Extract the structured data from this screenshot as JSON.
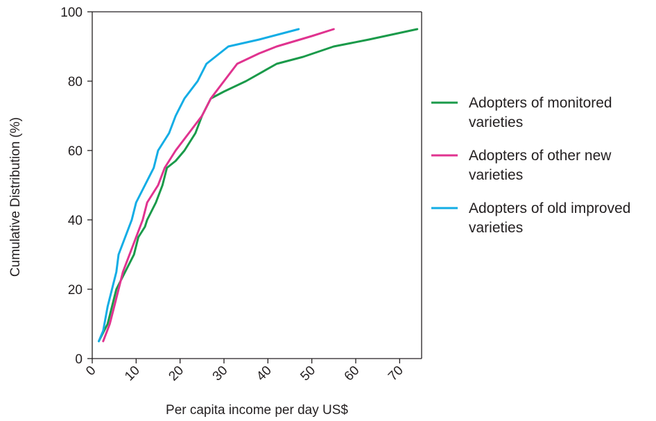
{
  "chart_data": {
    "type": "line",
    "title": "",
    "xlabel": "Per capita income per day US$",
    "ylabel": "Cumulative Distribution (%)",
    "xlim": [
      0,
      75
    ],
    "ylim": [
      0,
      100
    ],
    "x_ticks": [
      0,
      10,
      20,
      30,
      40,
      50,
      60,
      70
    ],
    "x_tick_labels": [
      "0",
      "10",
      "20",
      "30",
      "40",
      "50",
      "60",
      "70"
    ],
    "y_ticks": [
      0,
      20,
      40,
      60,
      80,
      100
    ],
    "y_tick_labels": [
      "0",
      "20",
      "40",
      "60",
      "80",
      "100"
    ],
    "grid": false,
    "legend_position": "right",
    "series": [
      {
        "name": "Adopters of monitored varieties",
        "legend_lines": [
          "Adopters of monitored",
          "varieties"
        ],
        "color": "#1a9a4a",
        "points": [
          [
            1.5,
            5
          ],
          [
            3.5,
            10
          ],
          [
            5.5,
            20
          ],
          [
            7.5,
            25
          ],
          [
            9.5,
            30
          ],
          [
            10.5,
            35
          ],
          [
            12,
            38
          ],
          [
            12.5,
            40
          ],
          [
            14.5,
            45
          ],
          [
            16,
            50
          ],
          [
            17,
            55
          ],
          [
            19,
            57
          ],
          [
            21,
            60
          ],
          [
            23.5,
            65
          ],
          [
            25,
            70
          ],
          [
            27,
            75
          ],
          [
            30,
            77
          ],
          [
            35,
            80
          ],
          [
            42,
            85
          ],
          [
            48,
            87
          ],
          [
            55,
            90
          ],
          [
            63,
            92
          ],
          [
            74,
            95
          ]
        ]
      },
      {
        "name": "Adopters of other new varieties",
        "legend_lines": [
          "Adopters of other new",
          "varieties"
        ],
        "color": "#e0338f",
        "points": [
          [
            2.5,
            5
          ],
          [
            4,
            10
          ],
          [
            5,
            15
          ],
          [
            6,
            20
          ],
          [
            7,
            25
          ],
          [
            8.5,
            30
          ],
          [
            10,
            35
          ],
          [
            11.5,
            40
          ],
          [
            12.5,
            45
          ],
          [
            15,
            50
          ],
          [
            16.5,
            55
          ],
          [
            19,
            60
          ],
          [
            22,
            65
          ],
          [
            25,
            70
          ],
          [
            27,
            75
          ],
          [
            30,
            80
          ],
          [
            33,
            85
          ],
          [
            38,
            88
          ],
          [
            42,
            90
          ],
          [
            50,
            93
          ],
          [
            55,
            95
          ]
        ]
      },
      {
        "name": "Adopters of old improved varieties",
        "legend_lines": [
          "Adopters of old improved",
          "varieties"
        ],
        "color": "#13ade5",
        "points": [
          [
            1.5,
            5
          ],
          [
            2.5,
            8
          ],
          [
            3.5,
            15
          ],
          [
            4.5,
            20
          ],
          [
            5.5,
            25
          ],
          [
            6,
            30
          ],
          [
            7.5,
            35
          ],
          [
            9,
            40
          ],
          [
            10,
            45
          ],
          [
            12,
            50
          ],
          [
            14,
            55
          ],
          [
            15,
            60
          ],
          [
            16.5,
            63
          ],
          [
            17.5,
            65
          ],
          [
            19,
            70
          ],
          [
            21,
            75
          ],
          [
            24,
            80
          ],
          [
            26,
            85
          ],
          [
            31,
            90
          ],
          [
            38,
            92
          ],
          [
            44,
            94
          ],
          [
            47,
            95
          ]
        ]
      }
    ]
  }
}
